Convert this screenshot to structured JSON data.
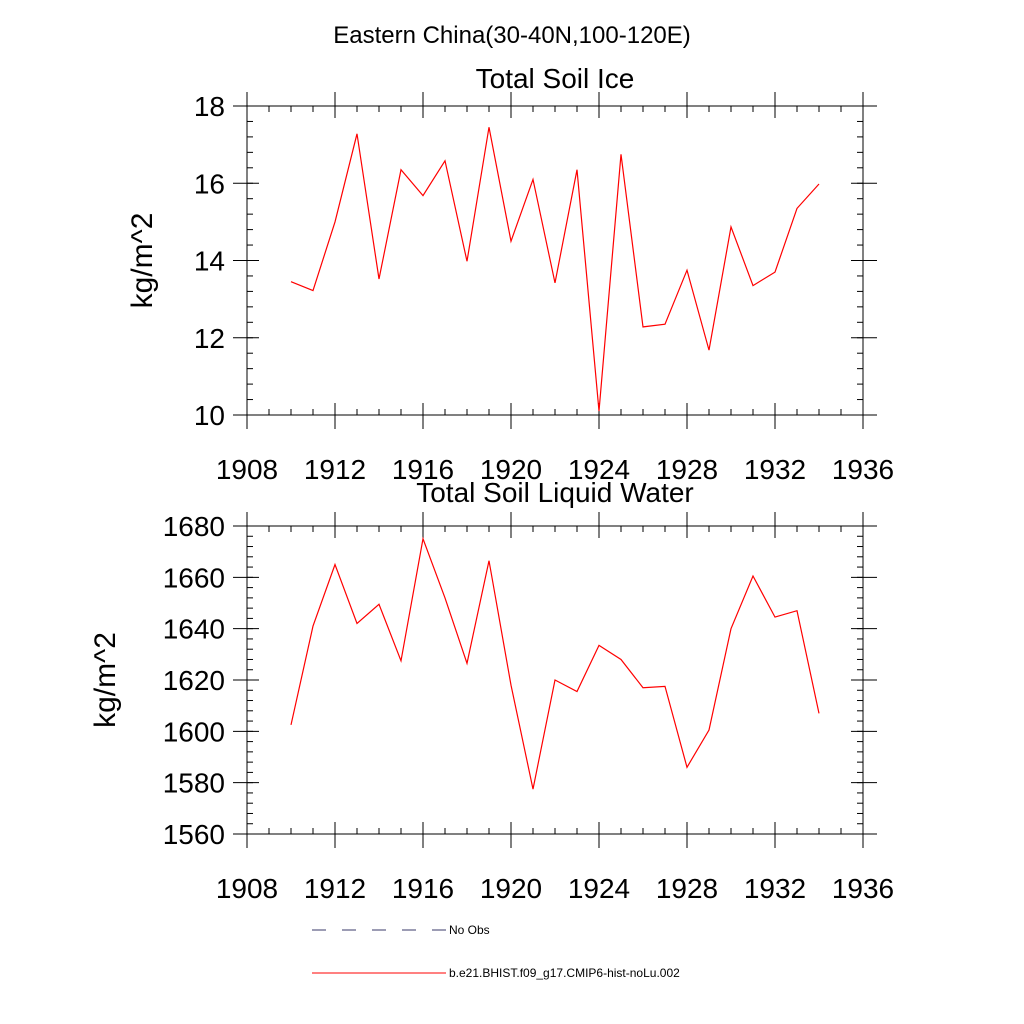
{
  "figure": {
    "suptitle": "Eastern China(30-40N,100-120E)"
  },
  "legend": {
    "entries": [
      {
        "label": "No Obs",
        "style": "dashed",
        "color": "#3a3a6a"
      },
      {
        "label": "b.e21.BHIST.f09_g17.CMIP6-hist-noLu.002",
        "style": "solid",
        "color": "#ff0000"
      }
    ]
  },
  "chart_data": [
    {
      "type": "line",
      "title": "Total Soil Ice",
      "xlabel": "",
      "ylabel": "kg/m^2",
      "xlim": [
        1908,
        1936
      ],
      "ylim": [
        10,
        18
      ],
      "x_ticks": [
        1908,
        1912,
        1916,
        1920,
        1924,
        1928,
        1932,
        1936
      ],
      "y_ticks": [
        10,
        12,
        14,
        16,
        18
      ],
      "y_minor_step": 0.4,
      "x_minor_step": 1,
      "grid": false,
      "series": [
        {
          "name": "b.e21.BHIST.f09_g17.CMIP6-hist-noLu.002",
          "color": "#ff0000",
          "x": [
            1910,
            1911,
            1912,
            1913,
            1914,
            1915,
            1916,
            1917,
            1918,
            1919,
            1920,
            1921,
            1922,
            1923,
            1924,
            1925,
            1926,
            1927,
            1928,
            1929,
            1930,
            1931,
            1932,
            1933,
            1934
          ],
          "y": [
            13.45,
            13.22,
            15.0,
            17.28,
            13.52,
            16.35,
            15.68,
            16.58,
            13.98,
            17.45,
            14.5,
            16.1,
            13.42,
            16.35,
            10.1,
            16.75,
            12.28,
            12.35,
            13.75,
            11.68,
            14.87,
            13.35,
            13.7,
            15.35,
            15.98
          ]
        }
      ]
    },
    {
      "type": "line",
      "title": "Total Soil Liquid Water",
      "xlabel": "",
      "ylabel": "kg/m^2",
      "xlim": [
        1908,
        1936
      ],
      "ylim": [
        1560,
        1680
      ],
      "x_ticks": [
        1908,
        1912,
        1916,
        1920,
        1924,
        1928,
        1932,
        1936
      ],
      "y_ticks": [
        1560,
        1580,
        1600,
        1620,
        1640,
        1660,
        1680
      ],
      "y_minor_step": 4,
      "x_minor_step": 1,
      "grid": false,
      "series": [
        {
          "name": "b.e21.BHIST.f09_g17.CMIP6-hist-noLu.002",
          "color": "#ff0000",
          "x": [
            1910,
            1911,
            1912,
            1913,
            1914,
            1915,
            1916,
            1917,
            1918,
            1919,
            1920,
            1921,
            1922,
            1923,
            1924,
            1925,
            1926,
            1927,
            1928,
            1929,
            1930,
            1931,
            1932,
            1933,
            1934
          ],
          "y": [
            1602.5,
            1641,
            1665,
            1642,
            1649.5,
            1627.5,
            1675,
            1652,
            1626.5,
            1666.5,
            1618,
            1577.5,
            1620,
            1615.5,
            1633.5,
            1628,
            1617,
            1617.5,
            1586,
            1600.5,
            1640,
            1660.5,
            1644.5,
            1647,
            1607
          ]
        }
      ]
    }
  ]
}
